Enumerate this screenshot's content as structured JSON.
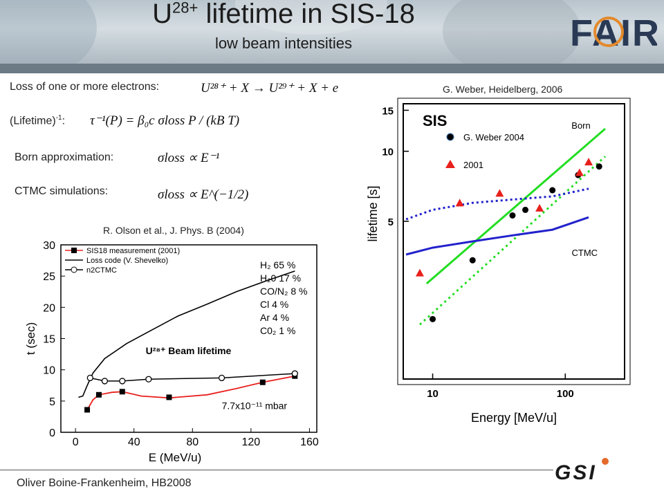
{
  "slide": {
    "title_main": "U",
    "title_sup": "28+",
    "title_rest": " lifetime in SIS-18",
    "subtitle": "low beam intensities",
    "logo_text": "FAIR",
    "footer": "Oliver Boine-Frankenheim,  HB2008",
    "gsi_logo_text": "GSI"
  },
  "left_text": {
    "loss_label": "Loss of one or more electrons:",
    "loss_equation": "U²⁸⁺ + X → U²⁹⁺ + X + e",
    "lifetime_label": "(Lifetime)",
    "lifetime_sup": "-1",
    "lifetime_colon": ":",
    "lifetime_equation": "τ⁻¹(P) = β₀c σloss P / (kB T)",
    "born_label": "Born approximation:",
    "born_equation": "σloss ∝ E⁻¹",
    "ctmc_label": "CTMC simulations:",
    "ctmc_equation": "σloss ∝ E^(−1/2)",
    "olson_caption": "R. Olson et al., J. Phys. B (2004)",
    "weber_caption": "G. Weber, Heidelberg, 2006"
  },
  "chart_data": [
    {
      "type": "line",
      "xlabel": "E   (MeV/u)",
      "ylabel": "t (sec)",
      "xlim": [
        -10,
        165
      ],
      "ylim": [
        0,
        30
      ],
      "xticks": [
        0,
        40,
        80,
        120,
        160
      ],
      "yticks": [
        0,
        5,
        10,
        15,
        20,
        25,
        30
      ],
      "annotation": "U²⁸⁺ Beam lifetime",
      "pressure": "7.7x10⁻¹¹ mbar",
      "composition": [
        "H₂ 65 %",
        "H₂0 17 %",
        "CO/N₂ 8 %",
        "Cl 4 %",
        "Ar 4 %",
        "C0₂ 1 %"
      ],
      "legend": "top-left",
      "series": [
        {
          "name": "SIS18 measurement (2001)",
          "marker": "square",
          "color": "#e8201c",
          "x": [
            8,
            16,
            32,
            64,
            128,
            150
          ],
          "y": [
            3.6,
            6.0,
            6.5,
            5.6,
            8.0,
            9.0
          ],
          "curve_x": [
            8,
            12,
            16,
            25,
            32,
            45,
            64,
            90,
            110,
            128,
            150
          ],
          "curve_y": [
            3.6,
            5.2,
            6.0,
            6.4,
            6.5,
            5.8,
            5.5,
            6.0,
            7.0,
            8.0,
            9.0
          ]
        },
        {
          "name": "Loss code (V. Shevelko)",
          "marker": "none",
          "color": "#000000",
          "x": [
            2,
            5,
            8,
            12,
            20,
            35,
            50,
            70,
            90,
            110,
            130,
            150
          ],
          "y": [
            5.6,
            5.8,
            7.5,
            9.5,
            11.8,
            14.2,
            16.1,
            18.6,
            20.5,
            22.5,
            24.2,
            25.8
          ]
        },
        {
          "name": "n2CTMC",
          "marker": "circle",
          "color": "#000000",
          "x": [
            10,
            20,
            32,
            50,
            100,
            150
          ],
          "y": [
            8.7,
            8.2,
            8.2,
            8.5,
            8.7,
            9.4
          ]
        }
      ]
    },
    {
      "type": "scatter",
      "title": "SIS",
      "xlabel": "Energy [MeV/u]",
      "ylabel": "lifetime [s]",
      "xscale": "log",
      "yscale": "log",
      "xlim": [
        6,
        280
      ],
      "ylim": [
        1.05,
        16
      ],
      "xticks": [
        10,
        100
      ],
      "yticks": [
        5,
        10,
        15
      ],
      "series": [
        {
          "name": "G. Weber 2004",
          "marker": "circle",
          "color": "#000000",
          "x": [
            10,
            20,
            40,
            50,
            80,
            125,
            180
          ],
          "y": [
            1.9,
            3.4,
            5.3,
            5.6,
            6.8,
            7.9,
            8.6
          ]
        },
        {
          "name": "2001",
          "marker": "triangle",
          "color": "#e8201c",
          "x": [
            8,
            16,
            32,
            64,
            128,
            150
          ],
          "y": [
            3.0,
            6.0,
            6.6,
            5.7,
            8.1,
            9.0
          ]
        },
        {
          "name": "Born",
          "style": "solid",
          "color": "#22dd22",
          "x": [
            9,
            200
          ],
          "y": [
            2.7,
            12.5
          ]
        },
        {
          "name": "",
          "style": "dotted",
          "color": "#22dd22",
          "x": [
            8,
            200
          ],
          "y": [
            1.8,
            9.5
          ]
        },
        {
          "name": "",
          "style": "dotted",
          "color": "#2222cc",
          "x": [
            6.3,
            10,
            20,
            40,
            80,
            150
          ],
          "y": [
            5.1,
            5.6,
            6.0,
            6.2,
            6.4,
            6.9
          ]
        },
        {
          "name": "CTMC",
          "style": "solid",
          "color": "#2222cc",
          "x": [
            6.3,
            10,
            20,
            40,
            80,
            150
          ],
          "y": [
            3.6,
            3.85,
            4.1,
            4.35,
            4.6,
            5.2
          ]
        }
      ]
    }
  ]
}
